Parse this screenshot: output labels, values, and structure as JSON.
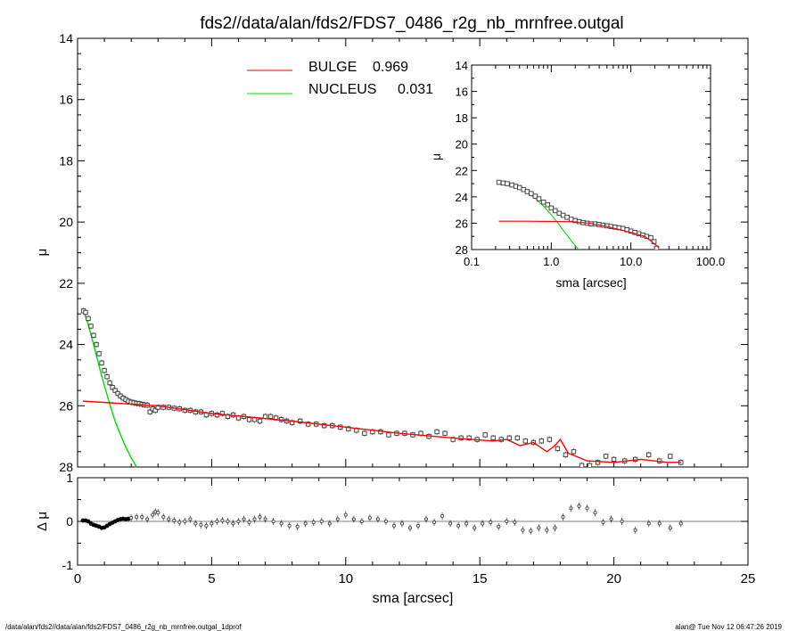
{
  "title": "fds2//data/alan/fds2/FDS7_0486_r2g_nb_mrnfree.outgal",
  "footer": {
    "left": "/data/alan/fds2//data/alan/fds2/FDS7_0486_r2g_nb_mrnfree.outgal_1dprof",
    "right": "alan@  Tue Nov 12 06:47:26 2019"
  },
  "colors": {
    "bulge": "#ff0000",
    "nucleus": "#00dd00",
    "data": "#444444"
  },
  "chart_data": [
    {
      "id": "main",
      "type": "scatter",
      "ylabel": "μ",
      "xlim": [
        0,
        25
      ],
      "ylim": [
        28,
        14
      ],
      "x_ticks": [
        "0",
        "5",
        "10",
        "15",
        "20",
        "25"
      ],
      "y_ticks": [
        "14",
        "16",
        "18",
        "20",
        "22",
        "24",
        "26",
        "28"
      ],
      "legend": [
        {
          "name": "BULGE",
          "value": "0.969",
          "color": "#ff0000"
        },
        {
          "name": "NUCLEUS",
          "value": "0.031",
          "color": "#00dd00"
        }
      ],
      "data_points": {
        "x": [
          0.22,
          0.3,
          0.4,
          0.5,
          0.6,
          0.7,
          0.8,
          0.9,
          1.0,
          1.1,
          1.2,
          1.3,
          1.4,
          1.5,
          1.6,
          1.7,
          1.8,
          1.9,
          2.0,
          2.1,
          2.2,
          2.3,
          2.4,
          2.5,
          2.6,
          2.7,
          2.8,
          2.9,
          3.0,
          3.2,
          3.4,
          3.6,
          3.8,
          4.0,
          4.2,
          4.4,
          4.6,
          4.8,
          5.0,
          5.2,
          5.4,
          5.6,
          5.8,
          6.0,
          6.2,
          6.4,
          6.6,
          6.8,
          7.0,
          7.2,
          7.4,
          7.6,
          7.8,
          8.0,
          8.3,
          8.6,
          8.9,
          9.2,
          9.5,
          9.8,
          10.1,
          10.4,
          10.7,
          11.0,
          11.3,
          11.6,
          11.9,
          12.2,
          12.5,
          12.8,
          13.1,
          13.4,
          13.7,
          14.0,
          14.3,
          14.6,
          14.9,
          15.2,
          15.5,
          15.8,
          16.1,
          16.4,
          16.7,
          17.0,
          17.3,
          17.6,
          17.9,
          18.2,
          18.5,
          18.8,
          19.1,
          19.4,
          19.7,
          20.0,
          20.4,
          20.8,
          21.3,
          21.7,
          22.1,
          22.5
        ],
        "y": [
          22.9,
          22.95,
          23.15,
          23.4,
          23.7,
          24.0,
          24.3,
          24.6,
          24.85,
          25.05,
          25.25,
          25.4,
          25.5,
          25.6,
          25.68,
          25.75,
          25.8,
          25.85,
          25.88,
          25.9,
          25.92,
          25.93,
          25.95,
          25.97,
          25.98,
          26.2,
          26.1,
          26.15,
          26.05,
          26.05,
          26.05,
          26.08,
          26.1,
          26.15,
          26.15,
          26.2,
          26.2,
          26.3,
          26.25,
          26.3,
          26.25,
          26.35,
          26.3,
          26.4,
          26.35,
          26.45,
          26.45,
          26.5,
          26.35,
          26.35,
          26.4,
          26.45,
          26.5,
          26.55,
          26.5,
          26.6,
          26.6,
          26.65,
          26.65,
          26.7,
          26.75,
          26.8,
          26.9,
          26.85,
          26.85,
          26.95,
          26.9,
          26.9,
          26.95,
          26.9,
          27.0,
          26.85,
          26.9,
          27.1,
          27.05,
          27.05,
          27.1,
          26.95,
          27.05,
          27.1,
          27.05,
          27.05,
          27.15,
          27.2,
          27.15,
          27.1,
          27.4,
          27.6,
          27.5,
          27.95,
          27.95,
          27.85,
          27.65,
          27.75,
          27.8,
          27.75,
          27.6,
          27.8,
          27.65,
          27.85
        ]
      },
      "bulge_model": {
        "x": [
          0.2,
          3.0,
          5.0,
          8.0,
          10.0,
          12.0,
          14.0,
          15.5,
          16.0,
          16.5,
          17.0,
          17.5,
          17.8,
          18.0,
          18.3,
          19.0,
          20.0,
          21.0,
          22.0,
          22.5
        ],
        "y": [
          25.85,
          26.0,
          26.25,
          26.5,
          26.7,
          26.9,
          27.05,
          27.15,
          27.1,
          27.3,
          27.2,
          27.5,
          27.3,
          27.1,
          27.55,
          27.8,
          27.85,
          27.75,
          27.85,
          27.85
        ]
      },
      "nucleus_model": {
        "x": [
          0.22,
          0.4,
          0.6,
          0.8,
          1.0,
          1.2,
          1.4,
          1.6,
          1.8,
          2.0,
          2.2,
          2.4
        ],
        "y": [
          22.9,
          23.35,
          24.0,
          24.7,
          25.35,
          25.95,
          26.5,
          26.95,
          27.35,
          27.7,
          28.0,
          28.3
        ]
      }
    },
    {
      "id": "residual",
      "type": "scatter",
      "ylabel": "Δ μ",
      "xlabel": "sma [arcsec]",
      "xlim": [
        0,
        25
      ],
      "ylim": [
        -1,
        1
      ],
      "y_ticks": [
        "-1",
        "0",
        "1"
      ],
      "x": [
        0.2,
        0.3,
        0.4,
        0.5,
        0.6,
        0.7,
        0.8,
        0.9,
        1.0,
        1.1,
        1.2,
        1.3,
        1.4,
        1.5,
        1.6,
        1.7,
        1.8,
        1.9,
        2.0,
        2.2,
        2.4,
        2.6,
        2.8,
        2.9,
        3.0,
        3.2,
        3.4,
        3.6,
        3.8,
        4.0,
        4.2,
        4.4,
        4.6,
        4.8,
        5.0,
        5.2,
        5.4,
        5.6,
        5.8,
        6.0,
        6.2,
        6.4,
        6.6,
        6.8,
        7.0,
        7.3,
        7.6,
        7.9,
        8.2,
        8.5,
        8.8,
        9.1,
        9.4,
        9.7,
        10.0,
        10.3,
        10.6,
        10.9,
        11.2,
        11.5,
        11.8,
        12.1,
        12.4,
        12.7,
        13.0,
        13.3,
        13.6,
        13.9,
        14.2,
        14.5,
        14.8,
        15.1,
        15.4,
        15.7,
        16.0,
        16.3,
        16.6,
        16.9,
        17.2,
        17.5,
        17.8,
        18.1,
        18.4,
        18.7,
        19.0,
        19.3,
        19.6,
        19.9,
        20.3,
        20.8,
        21.3,
        21.7,
        22.1,
        22.5
      ],
      "y": [
        0.02,
        0.02,
        0.0,
        -0.05,
        -0.08,
        -0.1,
        -0.12,
        -0.15,
        -0.14,
        -0.1,
        -0.06,
        -0.03,
        0.0,
        0.03,
        0.05,
        0.06,
        0.05,
        0.06,
        0.08,
        0.1,
        0.1,
        0.05,
        0.15,
        0.22,
        0.2,
        0.1,
        0.05,
        0.02,
        -0.02,
        0.0,
        0.05,
        -0.05,
        -0.08,
        -0.1,
        -0.05,
        0.0,
        0.02,
        0.0,
        -0.05,
        0.0,
        0.05,
        -0.02,
        0.05,
        0.1,
        0.05,
        0.0,
        -0.05,
        -0.1,
        -0.12,
        -0.05,
        -0.02,
        0.0,
        -0.05,
        0.05,
        0.15,
        0.05,
        0.0,
        0.08,
        0.05,
        0.0,
        -0.1,
        -0.05,
        -0.15,
        -0.1,
        0.05,
        -0.02,
        0.12,
        -0.05,
        -0.1,
        -0.05,
        -0.15,
        -0.05,
        -0.02,
        -0.12,
        0.0,
        -0.02,
        -0.2,
        -0.22,
        -0.15,
        -0.2,
        -0.15,
        0.1,
        0.3,
        0.35,
        0.3,
        0.2,
        -0.02,
        0.05,
        0.0,
        -0.2,
        -0.05,
        -0.05,
        -0.15,
        -0.05
      ]
    },
    {
      "id": "inset",
      "type": "scatter",
      "xscale": "log",
      "xlabel": "sma [arcsec]",
      "ylabel": "μ",
      "xlim": [
        0.1,
        100
      ],
      "ylim": [
        28,
        14
      ],
      "x_ticks": [
        "0.1",
        "1.0",
        "10.0",
        "100.0"
      ],
      "y_ticks": [
        "14",
        "16",
        "18",
        "20",
        "22",
        "24",
        "26",
        "28"
      ],
      "data_points": {
        "x": [
          0.22,
          0.25,
          0.28,
          0.32,
          0.36,
          0.4,
          0.45,
          0.5,
          0.56,
          0.63,
          0.7,
          0.8,
          0.9,
          1.0,
          1.12,
          1.26,
          1.41,
          1.58,
          1.78,
          2.0,
          2.24,
          2.51,
          2.82,
          3.16,
          3.55,
          3.98,
          4.47,
          5.01,
          5.62,
          6.31,
          7.08,
          7.94,
          8.91,
          10.0,
          11.2,
          12.6,
          14.1,
          15.8,
          17.8,
          19.5,
          21.0
        ],
        "y": [
          22.9,
          22.95,
          23.0,
          23.1,
          23.2,
          23.3,
          23.45,
          23.6,
          23.75,
          23.95,
          24.15,
          24.4,
          24.6,
          24.85,
          25.05,
          25.25,
          25.4,
          25.55,
          25.7,
          25.8,
          25.88,
          25.95,
          26.0,
          26.05,
          26.05,
          26.1,
          26.15,
          26.2,
          26.25,
          26.3,
          26.35,
          26.4,
          26.5,
          26.6,
          26.7,
          26.8,
          26.9,
          27.0,
          27.1,
          27.4,
          27.9
        ]
      },
      "bulge_model": {
        "x": [
          0.22,
          0.5,
          1.0,
          2.0,
          3.0,
          5.0,
          10.0,
          15.0,
          20.0,
          22.5
        ],
        "y": [
          25.85,
          25.85,
          25.86,
          25.9,
          26.0,
          26.25,
          26.7,
          27.0,
          27.6,
          27.85
        ]
      },
      "nucleus_model": {
        "x": [
          0.22,
          0.4,
          0.6,
          0.8,
          1.0,
          1.2,
          1.4,
          1.6,
          1.8,
          2.0,
          2.2,
          2.4
        ],
        "y": [
          22.9,
          23.35,
          24.0,
          24.7,
          25.35,
          25.95,
          26.5,
          26.95,
          27.35,
          27.7,
          28.0,
          28.3
        ]
      }
    }
  ]
}
